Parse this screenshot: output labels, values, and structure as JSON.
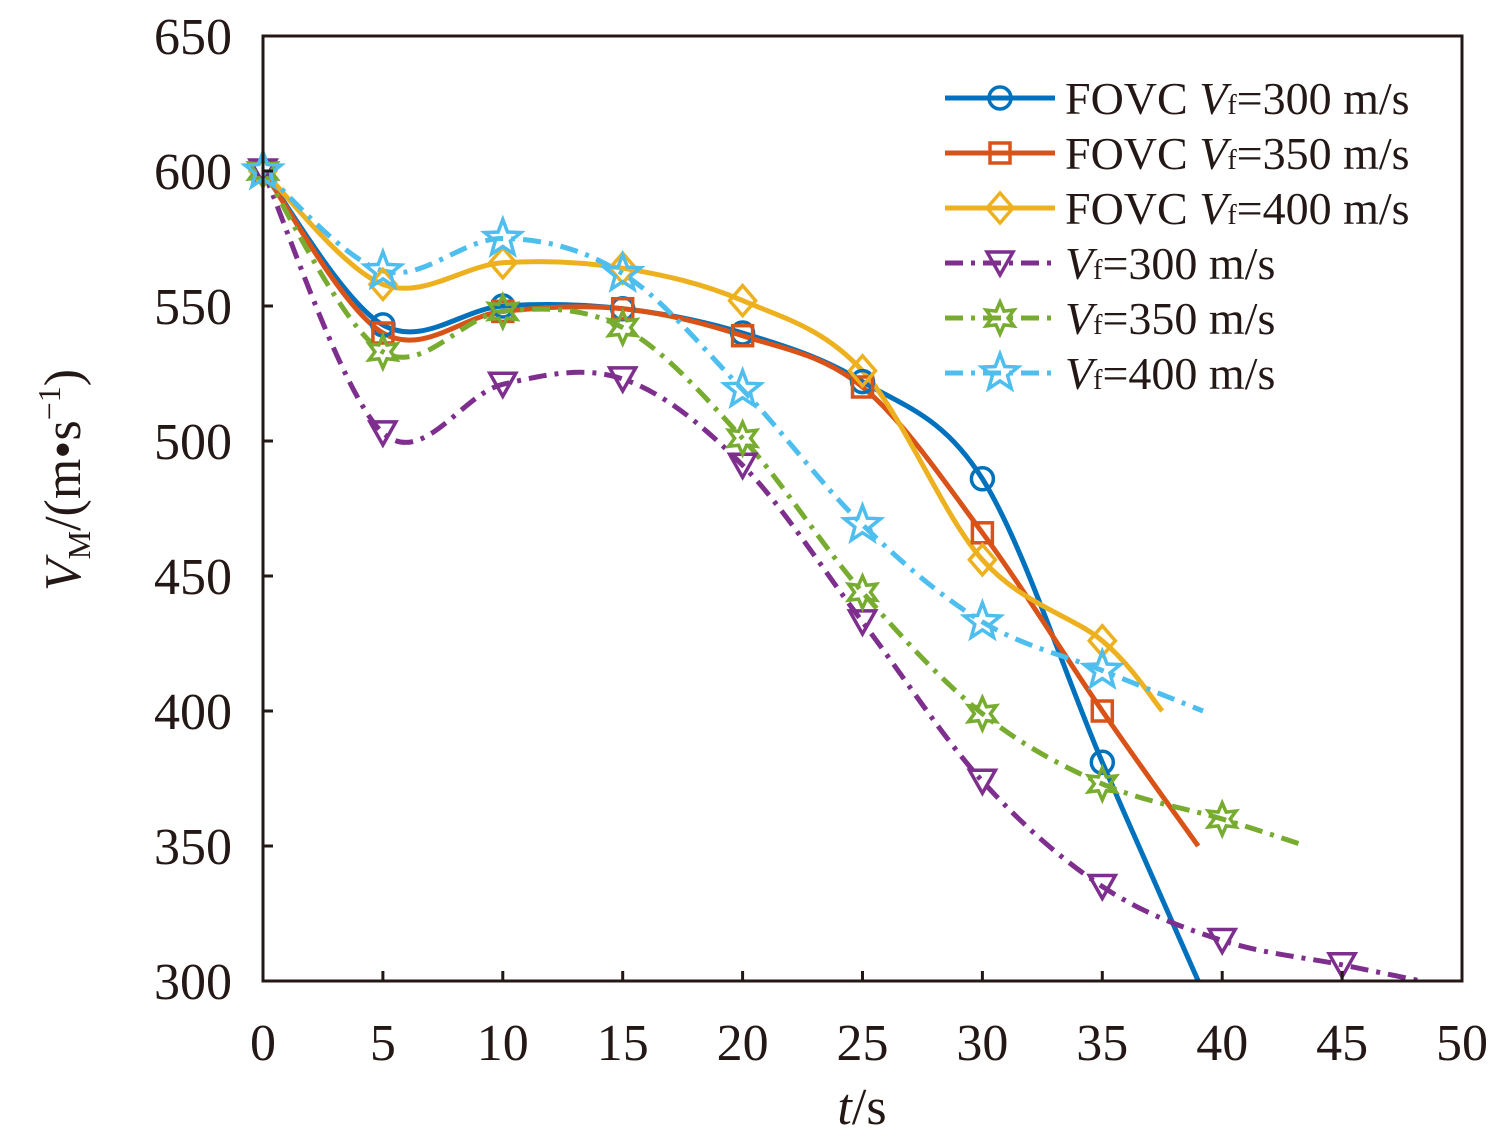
{
  "chart_data": {
    "type": "line",
    "title": "",
    "xlabel": {
      "var": "t",
      "unit": "/s"
    },
    "ylabel": {
      "var": "V",
      "sub": "M",
      "unit": "/(m•s",
      "sup": "−1",
      "close": ")"
    },
    "xlim": [
      0,
      50
    ],
    "ylim": [
      300,
      650
    ],
    "xticks": [
      0,
      5,
      10,
      15,
      20,
      25,
      30,
      35,
      40,
      45,
      50
    ],
    "yticks": [
      300,
      350,
      400,
      450,
      500,
      550,
      600,
      650
    ],
    "grid": false,
    "legend_placement": "top-right",
    "series": [
      {
        "name": {
          "prefix": "FOVC ",
          "var": "V",
          "sub": "f",
          "suffix": "=300 m/s"
        },
        "color": "#0072BD",
        "marker": "circle",
        "dash": "solid",
        "x": [
          0,
          5,
          10,
          15,
          20,
          25,
          30,
          35,
          39
        ],
        "y": [
          600,
          543,
          550,
          549,
          540,
          522,
          486,
          381,
          300
        ]
      },
      {
        "name": {
          "prefix": "FOVC ",
          "var": "V",
          "sub": "f",
          "suffix": "=350 m/s"
        },
        "color": "#D95319",
        "marker": "square",
        "dash": "solid",
        "x": [
          0,
          5,
          10,
          15,
          20,
          25,
          30,
          35,
          39
        ],
        "y": [
          600,
          540,
          548,
          549,
          539,
          520,
          466,
          400,
          350
        ]
      },
      {
        "name": {
          "prefix": "FOVC ",
          "var": "V",
          "sub": "f",
          "suffix": "=400 m/s"
        },
        "color": "#EDB120",
        "marker": "diamond",
        "dash": "solid",
        "x": [
          0,
          5,
          10,
          15,
          20,
          25,
          30,
          35,
          37.5
        ],
        "y": [
          600,
          558,
          566,
          564,
          552,
          526,
          456,
          426,
          400
        ]
      },
      {
        "name": {
          "prefix": "",
          "var": "V",
          "sub": "f",
          "suffix": "=300 m/s"
        },
        "color": "#7E2F8E",
        "marker": "triangle-down",
        "dash": "dashdot",
        "x": [
          0,
          5,
          10,
          15,
          20,
          25,
          30,
          35,
          40,
          45,
          48.3
        ],
        "y": [
          600,
          503,
          521,
          523,
          491,
          433,
          374,
          335,
          315,
          306,
          300
        ]
      },
      {
        "name": {
          "prefix": "",
          "var": "V",
          "sub": "f",
          "suffix": "=350 m/s"
        },
        "color": "#77AC30",
        "marker": "hexagram",
        "dash": "dashdot",
        "x": [
          0,
          5,
          10,
          15,
          20,
          25,
          30,
          35,
          40,
          43.5
        ],
        "y": [
          600,
          533,
          548,
          542,
          501,
          444,
          399,
          373,
          360,
          350
        ]
      },
      {
        "name": {
          "prefix": "",
          "var": "V",
          "sub": "f",
          "suffix": "=400 m/s"
        },
        "color": "#4DBEEE",
        "marker": "pentagram",
        "dash": "dashdot",
        "x": [
          0,
          5,
          10,
          15,
          20,
          25,
          30,
          35,
          39.2
        ],
        "y": [
          600,
          563,
          575,
          562,
          519,
          469,
          433,
          415,
          400
        ]
      }
    ]
  }
}
